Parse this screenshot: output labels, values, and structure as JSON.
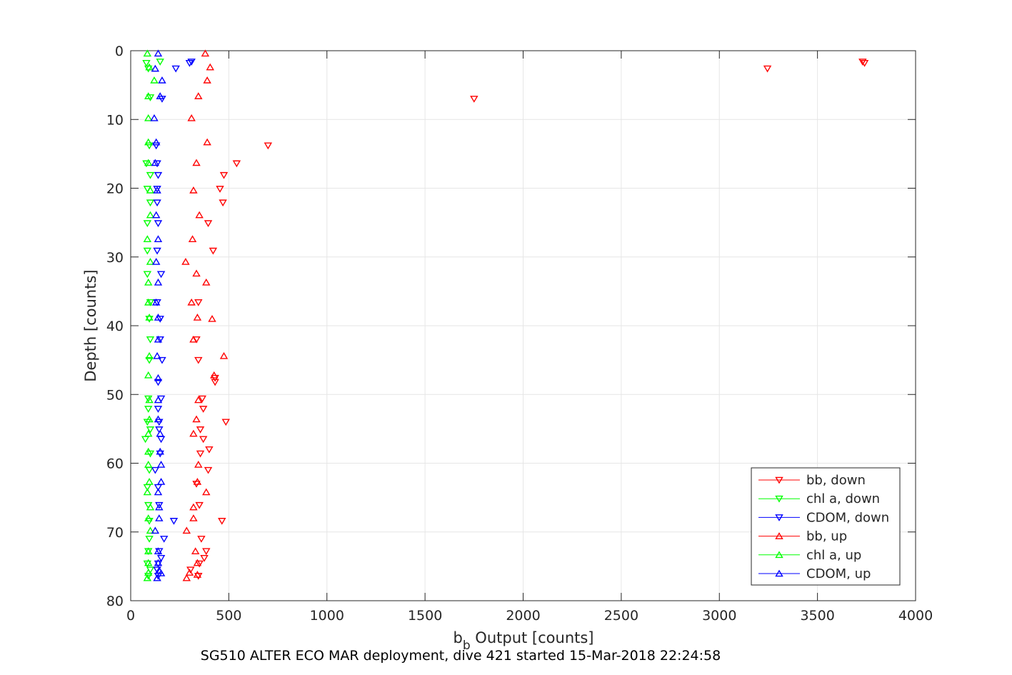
{
  "chart_data": {
    "type": "scatter",
    "xlabel_main": "b",
    "xlabel_sub": "b",
    "xlabel_rest": " Output [counts]",
    "ylabel": "Depth [counts]",
    "caption": "SG510 ALTER ECO MAR deployment, dive 421 started 15-Mar-2018 22:24:58",
    "xlim": [
      0,
      4000
    ],
    "ylim": [
      0,
      80
    ],
    "y_reversed": true,
    "grid": true,
    "legend_position": "bottom-right",
    "x_ticks": [
      0,
      500,
      1000,
      1500,
      2000,
      2500,
      3000,
      3500,
      4000
    ],
    "y_ticks": [
      0,
      10,
      20,
      30,
      40,
      50,
      60,
      70,
      80
    ],
    "series": [
      {
        "name": "bb, down",
        "color": "#ff0000",
        "marker": "triangle-down",
        "points": [
          [
            3730,
            1.6
          ],
          [
            3740,
            1.8
          ],
          [
            3245,
            2.6
          ],
          [
            1750,
            7.0
          ],
          [
            700,
            13.8
          ],
          [
            540,
            16.4
          ],
          [
            475,
            18.1
          ],
          [
            455,
            20.1
          ],
          [
            470,
            22.1
          ],
          [
            395,
            25.1
          ],
          [
            420,
            29.1
          ],
          [
            345,
            36.6
          ],
          [
            335,
            42.0
          ],
          [
            345,
            45.0
          ],
          [
            430,
            47.6
          ],
          [
            430,
            48.2
          ],
          [
            365,
            50.6
          ],
          [
            370,
            52.1
          ],
          [
            485,
            54.0
          ],
          [
            355,
            55.1
          ],
          [
            370,
            56.5
          ],
          [
            400,
            58.0
          ],
          [
            355,
            58.6
          ],
          [
            395,
            61.0
          ],
          [
            335,
            63.0
          ],
          [
            350,
            66.1
          ],
          [
            465,
            68.4
          ],
          [
            360,
            71.0
          ],
          [
            385,
            72.8
          ],
          [
            375,
            73.8
          ],
          [
            350,
            74.6
          ],
          [
            305,
            75.5
          ],
          [
            345,
            76.4
          ]
        ]
      },
      {
        "name": "chl a, down",
        "color": "#00ff00",
        "marker": "triangle-down",
        "points": [
          [
            150,
            1.6
          ],
          [
            80,
            1.8
          ],
          [
            90,
            2.6
          ],
          [
            100,
            6.8
          ],
          [
            95,
            13.8
          ],
          [
            80,
            16.4
          ],
          [
            100,
            18.1
          ],
          [
            85,
            20.1
          ],
          [
            100,
            22.1
          ],
          [
            85,
            25.1
          ],
          [
            85,
            29.1
          ],
          [
            85,
            32.5
          ],
          [
            100,
            36.6
          ],
          [
            95,
            39.0
          ],
          [
            100,
            42.0
          ],
          [
            95,
            45.0
          ],
          [
            90,
            50.6
          ],
          [
            90,
            52.1
          ],
          [
            85,
            54.0
          ],
          [
            100,
            55.1
          ],
          [
            75,
            56.5
          ],
          [
            100,
            58.6
          ],
          [
            95,
            61.0
          ],
          [
            85,
            63.5
          ],
          [
            90,
            66.1
          ],
          [
            95,
            68.4
          ],
          [
            95,
            71.0
          ],
          [
            90,
            72.8
          ],
          [
            85,
            74.6
          ],
          [
            100,
            75.5
          ],
          [
            90,
            76.4
          ]
        ]
      },
      {
        "name": "CDOM, down",
        "color": "#0000ff",
        "marker": "triangle-down",
        "points": [
          [
            310,
            1.6
          ],
          [
            300,
            1.8
          ],
          [
            230,
            2.6
          ],
          [
            160,
            7.0
          ],
          [
            130,
            13.8
          ],
          [
            135,
            16.4
          ],
          [
            140,
            18.1
          ],
          [
            135,
            20.1
          ],
          [
            135,
            22.1
          ],
          [
            140,
            25.1
          ],
          [
            135,
            29.1
          ],
          [
            155,
            32.5
          ],
          [
            135,
            36.6
          ],
          [
            150,
            39.0
          ],
          [
            150,
            42.0
          ],
          [
            160,
            45.0
          ],
          [
            140,
            48.2
          ],
          [
            155,
            50.6
          ],
          [
            140,
            52.1
          ],
          [
            145,
            54.0
          ],
          [
            145,
            55.1
          ],
          [
            155,
            56.5
          ],
          [
            150,
            58.6
          ],
          [
            125,
            61.0
          ],
          [
            140,
            63.5
          ],
          [
            145,
            66.1
          ],
          [
            220,
            68.4
          ],
          [
            170,
            71.0
          ],
          [
            145,
            72.8
          ],
          [
            155,
            73.8
          ],
          [
            140,
            74.6
          ],
          [
            135,
            75.5
          ],
          [
            140,
            76.4
          ]
        ]
      },
      {
        "name": "bb, up",
        "color": "#ff0000",
        "marker": "triangle-up",
        "points": [
          [
            380,
            0.4
          ],
          [
            405,
            2.4
          ],
          [
            390,
            4.3
          ],
          [
            345,
            6.6
          ],
          [
            310,
            9.8
          ],
          [
            390,
            13.3
          ],
          [
            335,
            16.3
          ],
          [
            320,
            20.3
          ],
          [
            350,
            23.9
          ],
          [
            315,
            27.4
          ],
          [
            280,
            30.7
          ],
          [
            335,
            32.4
          ],
          [
            385,
            33.7
          ],
          [
            310,
            36.6
          ],
          [
            340,
            38.8
          ],
          [
            415,
            39.0
          ],
          [
            320,
            42.0
          ],
          [
            475,
            44.4
          ],
          [
            425,
            47.2
          ],
          [
            345,
            50.8
          ],
          [
            335,
            53.6
          ],
          [
            320,
            55.7
          ],
          [
            345,
            60.2
          ],
          [
            340,
            62.7
          ],
          [
            385,
            64.2
          ],
          [
            320,
            66.4
          ],
          [
            320,
            68.0
          ],
          [
            285,
            69.8
          ],
          [
            330,
            72.8
          ],
          [
            340,
            74.5
          ],
          [
            300,
            75.9
          ],
          [
            340,
            76.2
          ],
          [
            285,
            76.7
          ]
        ]
      },
      {
        "name": "chl a, up",
        "color": "#00ff00",
        "marker": "triangle-up",
        "points": [
          [
            85,
            0.4
          ],
          [
            95,
            2.4
          ],
          [
            120,
            4.3
          ],
          [
            90,
            6.6
          ],
          [
            90,
            9.8
          ],
          [
            90,
            13.3
          ],
          [
            90,
            16.3
          ],
          [
            100,
            20.3
          ],
          [
            100,
            23.9
          ],
          [
            85,
            27.4
          ],
          [
            100,
            30.7
          ],
          [
            90,
            33.7
          ],
          [
            90,
            36.6
          ],
          [
            95,
            38.8
          ],
          [
            95,
            44.4
          ],
          [
            90,
            47.2
          ],
          [
            95,
            50.8
          ],
          [
            95,
            53.6
          ],
          [
            90,
            55.7
          ],
          [
            90,
            58.3
          ],
          [
            90,
            60.2
          ],
          [
            95,
            62.7
          ],
          [
            85,
            64.2
          ],
          [
            100,
            66.4
          ],
          [
            90,
            68.0
          ],
          [
            100,
            69.8
          ],
          [
            90,
            72.8
          ],
          [
            90,
            74.5
          ],
          [
            90,
            75.9
          ],
          [
            85,
            76.7
          ]
        ]
      },
      {
        "name": "CDOM, up",
        "color": "#0000ff",
        "marker": "triangle-up",
        "points": [
          [
            140,
            0.4
          ],
          [
            125,
            2.6
          ],
          [
            160,
            4.3
          ],
          [
            150,
            6.6
          ],
          [
            120,
            9.8
          ],
          [
            130,
            13.3
          ],
          [
            125,
            16.3
          ],
          [
            135,
            20.3
          ],
          [
            130,
            23.9
          ],
          [
            140,
            27.4
          ],
          [
            130,
            30.7
          ],
          [
            140,
            33.7
          ],
          [
            130,
            36.6
          ],
          [
            140,
            38.8
          ],
          [
            140,
            42.0
          ],
          [
            135,
            44.4
          ],
          [
            140,
            47.6
          ],
          [
            140,
            50.8
          ],
          [
            140,
            53.6
          ],
          [
            150,
            55.7
          ],
          [
            150,
            58.3
          ],
          [
            155,
            60.2
          ],
          [
            155,
            62.7
          ],
          [
            140,
            64.2
          ],
          [
            145,
            66.4
          ],
          [
            145,
            68.0
          ],
          [
            125,
            69.8
          ],
          [
            140,
            72.8
          ],
          [
            140,
            74.5
          ],
          [
            145,
            75.6
          ],
          [
            155,
            76.0
          ],
          [
            135,
            76.7
          ]
        ]
      }
    ]
  }
}
